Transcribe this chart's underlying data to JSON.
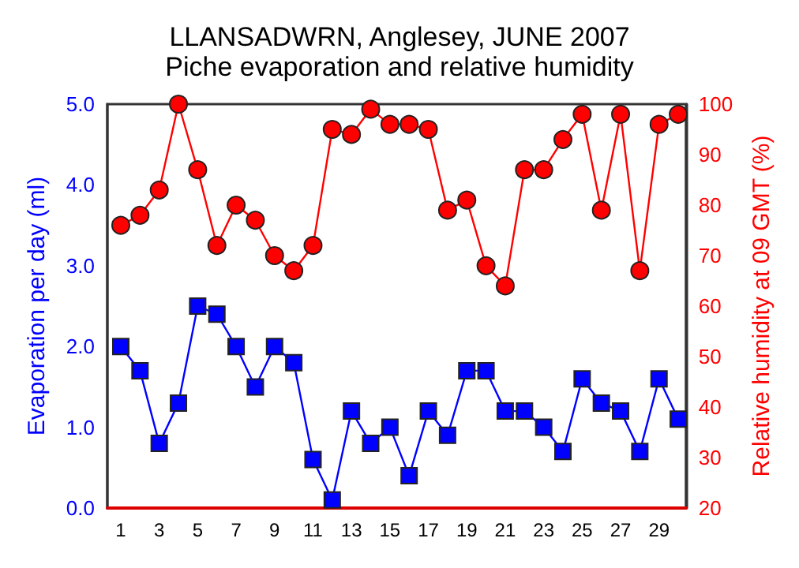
{
  "chart_data": {
    "type": "line",
    "title": "LLANSADWRN, Anglesey, JUNE 2007",
    "subtitle": "Piche evaporation and relative humidity",
    "xlabel": null,
    "ylabel": "Evaporation per day (ml)",
    "y2label": "Relative humidity at 09 GMT (%)",
    "x": [
      1,
      2,
      3,
      4,
      5,
      6,
      7,
      8,
      9,
      10,
      11,
      12,
      13,
      14,
      15,
      16,
      17,
      18,
      19,
      20,
      21,
      22,
      23,
      24,
      25,
      26,
      27,
      28,
      29,
      30
    ],
    "xlim": [
      0.3,
      30.4
    ],
    "xticks": [
      1,
      3,
      5,
      7,
      9,
      11,
      13,
      15,
      17,
      19,
      21,
      23,
      25,
      27,
      29
    ],
    "ylim": [
      0,
      5
    ],
    "yticks": [
      {
        "value": 0,
        "label": "0.0"
      },
      {
        "value": 1,
        "label": "1.0"
      },
      {
        "value": 2,
        "label": "2.0"
      },
      {
        "value": 3,
        "label": "3.0"
      },
      {
        "value": 4,
        "label": "4.0"
      },
      {
        "value": 5,
        "label": "5.0"
      }
    ],
    "y2lim": [
      20,
      100
    ],
    "y2ticks": [
      20,
      30,
      40,
      50,
      60,
      70,
      80,
      90,
      100
    ],
    "grid": false,
    "series": [
      {
        "color": "#0000ff",
        "marker": "square",
        "values": [
          2.0,
          1.7,
          0.8,
          1.3,
          2.5,
          2.4,
          2.0,
          1.5,
          2.0,
          1.8,
          0.6,
          0.1,
          1.2,
          0.8,
          1.0,
          0.4,
          1.2,
          0.9,
          1.7,
          1.7,
          1.2,
          1.2,
          1.0,
          0.7,
          1.6,
          1.3,
          1.2,
          0.7,
          1.6,
          1.1
        ]
      },
      {
        "color": "#ff0000",
        "marker": "circle",
        "axis": "y2",
        "values": [
          76,
          78,
          83,
          100,
          87,
          72,
          80,
          77,
          70,
          67,
          72,
          95,
          94,
          99,
          96,
          96,
          95,
          79,
          81,
          68,
          64,
          87,
          87,
          93,
          98,
          79,
          98,
          67,
          96,
          98
        ]
      }
    ]
  }
}
